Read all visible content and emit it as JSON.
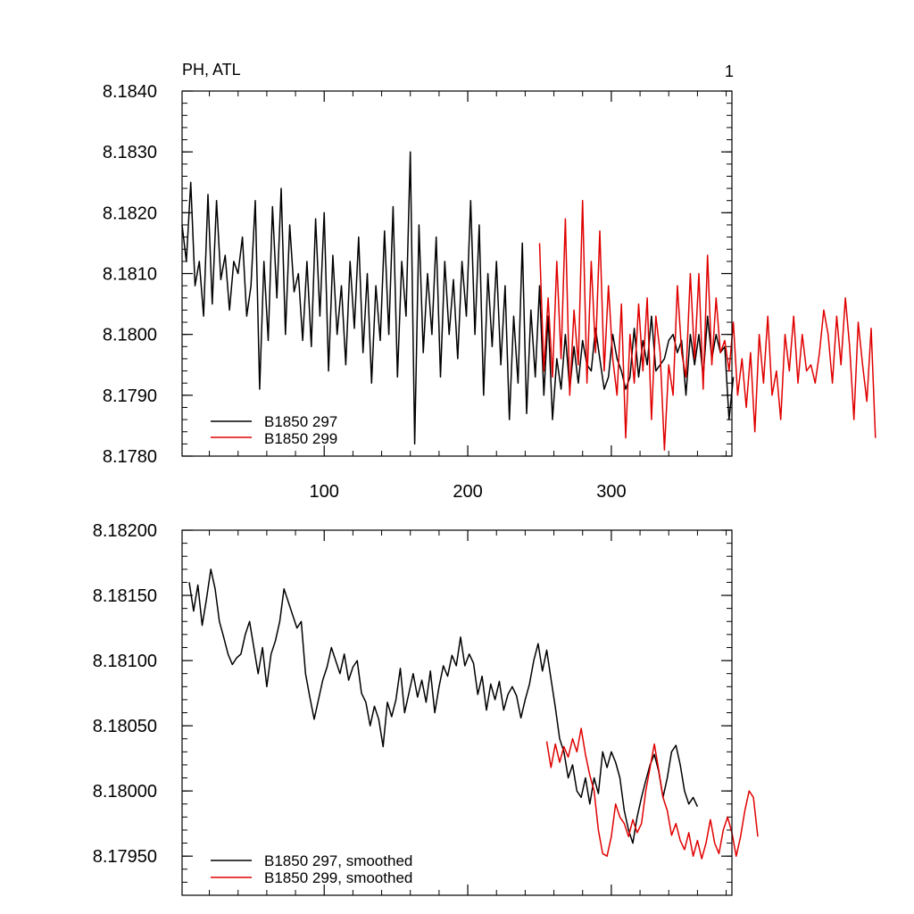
{
  "chart_data": [
    {
      "type": "line",
      "title": "PH, ATL",
      "corner_label": "1",
      "xlabel": "",
      "ylabel": "",
      "xlim": [
        1,
        384
      ],
      "ylim": [
        8.178,
        8.184
      ],
      "x_ticks": [
        100,
        200,
        300
      ],
      "x_tick_labels": [
        "100",
        "200",
        "300"
      ],
      "y_ticks": [
        8.178,
        8.179,
        8.18,
        8.181,
        8.182,
        8.183,
        8.184
      ],
      "y_tick_labels": [
        "8.1780",
        "8.1790",
        "8.1800",
        "8.1810",
        "8.1820",
        "8.1830",
        "8.1840"
      ],
      "legend_position": "bottom-left",
      "series": [
        {
          "name": "B1850 297",
          "color": "#000000",
          "x_start": 1,
          "x_step": 3,
          "values": [
            8.1818,
            8.1812,
            8.1825,
            8.1808,
            8.1812,
            8.1803,
            8.1823,
            8.1805,
            8.1822,
            8.1809,
            8.1813,
            8.1804,
            8.1812,
            8.181,
            8.1816,
            8.1803,
            8.1808,
            8.1822,
            8.1791,
            8.1812,
            8.1799,
            8.1821,
            8.1806,
            8.1824,
            8.18,
            8.1818,
            8.1807,
            8.181,
            8.1799,
            8.1812,
            8.1798,
            8.1819,
            8.1803,
            8.182,
            8.1794,
            8.1813,
            8.18,
            8.1808,
            8.1795,
            8.1812,
            8.1801,
            8.1816,
            8.1797,
            8.181,
            8.1792,
            8.1808,
            8.1799,
            8.1817,
            8.18,
            8.1821,
            8.1793,
            8.1812,
            8.1803,
            8.183,
            8.1782,
            8.1818,
            8.1797,
            8.181,
            8.18,
            8.1816,
            8.1793,
            8.1812,
            8.18,
            8.1809,
            8.1796,
            8.1812,
            8.1803,
            8.1822,
            8.18,
            8.1818,
            8.179,
            8.181,
            8.1798,
            8.1812,
            8.1795,
            8.1808,
            8.1786,
            8.1803,
            8.1792,
            8.1815,
            8.1787,
            8.1804,
            8.1793,
            8.1808,
            8.179,
            8.1803,
            8.1786,
            8.1796,
            8.1791,
            8.18,
            8.1791,
            8.1798,
            8.1792,
            8.1799,
            8.1795,
            8.1794,
            8.1801,
            8.1796,
            8.1791,
            8.1793,
            8.18,
            8.1796,
            8.1794,
            8.1791,
            8.1793,
            8.1801,
            8.1793,
            8.1799,
            8.1795,
            8.1803,
            8.1794,
            8.1795,
            8.1796,
            8.1799,
            8.18,
            8.1797,
            8.1799,
            8.179,
            8.18,
            8.1795,
            8.18,
            8.1793,
            8.1803,
            8.1796,
            8.18,
            8.1797,
            8.1798,
            8.1786,
            8.1793
          ]
        },
        {
          "name": "B1850 299",
          "color": "#e00000",
          "x_start": 250,
          "x_step": 3,
          "values": [
            8.1815,
            8.1794,
            8.1806,
            8.1793,
            8.1812,
            8.1796,
            8.1819,
            8.179,
            8.1804,
            8.1795,
            8.1822,
            8.1792,
            8.1812,
            8.1797,
            8.1817,
            8.1794,
            8.1808,
            8.1796,
            8.179,
            8.1805,
            8.1783,
            8.18,
            8.1792,
            8.1805,
            8.1794,
            8.1806,
            8.1786,
            8.1803,
            8.1797,
            8.1781,
            8.1795,
            8.179,
            8.1808,
            8.1797,
            8.1793,
            8.181,
            8.1796,
            8.181,
            8.1791,
            8.1813,
            8.1795,
            8.1806,
            8.1797,
            8.1799,
            8.1794,
            8.1802,
            8.179,
            8.1796,
            8.1788,
            8.1797,
            8.1784,
            8.18,
            8.1792,
            8.1803,
            8.179,
            8.1794,
            8.1786,
            8.18,
            8.1794,
            8.1803,
            8.1792,
            8.18,
            8.1794,
            8.1795,
            8.1792,
            8.1797,
            8.1804,
            8.18,
            8.1792,
            8.1803,
            8.1795,
            8.1806,
            8.1798,
            8.1786,
            8.1802,
            8.1795,
            8.1789,
            8.1801,
            8.1783
          ]
        }
      ]
    },
    {
      "type": "line",
      "title": "",
      "xlabel": "",
      "ylabel": "",
      "xlim": [
        1,
        384
      ],
      "ylim": [
        8.1792,
        8.182
      ],
      "x_ticks": [
        100,
        200,
        300
      ],
      "x_tick_labels": [],
      "y_ticks": [
        8.1795,
        8.18,
        8.1805,
        8.181,
        8.1815,
        8.182
      ],
      "y_tick_labels": [
        "8.17950",
        "8.18000",
        "8.18050",
        "8.18100",
        "8.18150",
        "8.18200"
      ],
      "legend_position": "bottom-left",
      "series": [
        {
          "name": "B1850 297, smoothed",
          "color": "#000000",
          "x_start": 6,
          "x_step": 3,
          "values": [
            8.1816,
            8.18138,
            8.18158,
            8.18127,
            8.18147,
            8.1817,
            8.18155,
            8.1813,
            8.18118,
            8.18105,
            8.18097,
            8.18102,
            8.18105,
            8.1812,
            8.1813,
            8.1811,
            8.1809,
            8.1811,
            8.1808,
            8.18105,
            8.18115,
            8.1813,
            8.18155,
            8.18145,
            8.18135,
            8.18125,
            8.1813,
            8.1809,
            8.18072,
            8.18055,
            8.1807,
            8.18085,
            8.18095,
            8.1811,
            8.181,
            8.1809,
            8.18105,
            8.18085,
            8.18095,
            8.181,
            8.18075,
            8.18068,
            8.1805,
            8.18065,
            8.18055,
            8.18034,
            8.18068,
            8.18057,
            8.1807,
            8.18094,
            8.1806,
            8.18075,
            8.1809,
            8.18072,
            8.18085,
            8.18068,
            8.18092,
            8.1806,
            8.1808,
            8.18096,
            8.18088,
            8.18104,
            8.18096,
            8.18118,
            8.18096,
            8.18105,
            8.18098,
            8.18074,
            8.18088,
            8.18062,
            8.18082,
            8.1807,
            8.18084,
            8.18062,
            8.18074,
            8.1808,
            8.18073,
            8.18056,
            8.1807,
            8.18082,
            8.181,
            8.18113,
            8.18092,
            8.18108,
            8.18086,
            8.18064,
            8.1804,
            8.1803,
            8.1801,
            8.1802,
            8.18,
            8.17995,
            8.1801,
            8.1799,
            8.1801,
            8.17998,
            8.1803,
            8.18018,
            8.1803,
            8.18022,
            8.1801,
            8.17985,
            8.1797,
            8.1796,
            8.1798,
            8.17995,
            8.18008,
            8.1802,
            8.18028,
            8.18015,
            8.17995,
            8.1801,
            8.1803,
            8.18035,
            8.1802,
            8.18,
            8.1799,
            8.17995,
            8.17988
          ]
        },
        {
          "name": "B1850 299, smoothed",
          "color": "#e00000",
          "x_start": 255,
          "x_step": 3,
          "values": [
            8.18038,
            8.18018,
            8.18036,
            8.18022,
            8.18034,
            8.18026,
            8.1804,
            8.1803,
            8.18048,
            8.18028,
            8.18012,
            8.18,
            8.1797,
            8.17952,
            8.1795,
            8.17965,
            8.1799,
            8.1798,
            8.17975,
            8.17965,
            8.17978,
            8.17968,
            8.17975,
            8.18,
            8.18018,
            8.18036,
            8.18016,
            8.17995,
            8.17985,
            8.17966,
            8.17975,
            8.17962,
            8.17955,
            8.17968,
            8.1795,
            8.17962,
            8.17948,
            8.1796,
            8.17978,
            8.1796,
            8.17952,
            8.1797,
            8.1798,
            8.17968,
            8.1795,
            8.17965,
            8.17985,
            8.18,
            8.17995,
            8.17965
          ]
        }
      ]
    }
  ]
}
